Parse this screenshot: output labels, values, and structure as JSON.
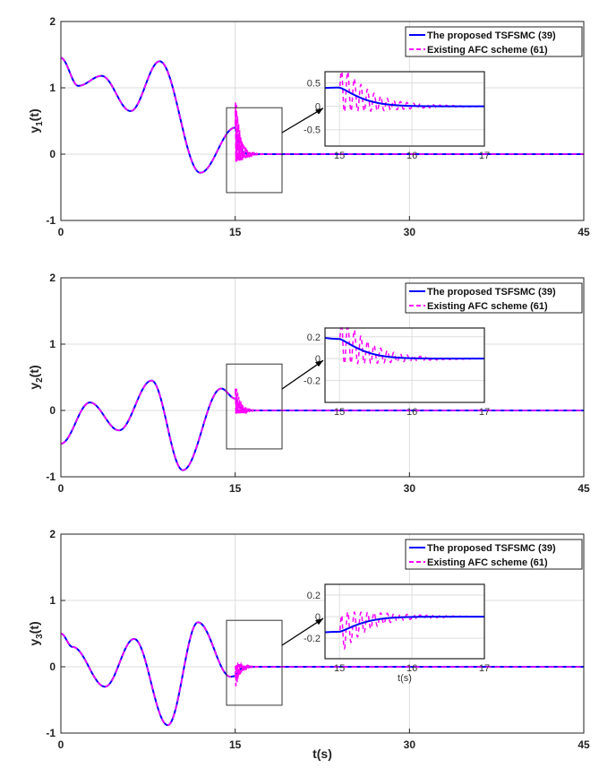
{
  "chart_data": {
    "type": "line",
    "xlabel": "t(s)",
    "xlim": [
      0,
      45
    ],
    "xticks": [
      "0",
      "15",
      "30",
      "45"
    ],
    "ylim": [
      -1,
      2
    ],
    "yticks": [
      "-1",
      "0",
      "1",
      "2"
    ],
    "grid": true,
    "legend": {
      "placement": "top-right",
      "entries": [
        "The proposed TSFSMC (39)",
        "Existing AFC scheme (61)"
      ]
    },
    "colors": {
      "proposed": "#0000ff",
      "existing": "#ff00ff"
    },
    "panels": [
      {
        "ylabel": "y",
        "sub": "1",
        "ylabel_suffix": "(t)",
        "keypoints_t": [
          0,
          1.5,
          3.5,
          6,
          8.5,
          12,
          15
        ],
        "keypoints_y": [
          1.45,
          1.03,
          1.18,
          0.65,
          1.4,
          -0.28,
          0.4
        ],
        "existing_osc_amplitude": 0.55,
        "inset": {
          "xlim": [
            14.8,
            17
          ],
          "ylim": [
            -0.85,
            0.74
          ],
          "xticks": [
            "15",
            "16",
            "17"
          ],
          "yticks": [
            "0.5",
            "0",
            "-0.5"
          ],
          "ytick_values": [
            0.5,
            0,
            -0.5
          ],
          "xlabel": ""
        }
      },
      {
        "ylabel": "y",
        "sub": "2",
        "ylabel_suffix": "(t)",
        "keypoints_t": [
          0,
          2.5,
          5,
          7.8,
          10.5,
          13.8,
          15
        ],
        "keypoints_y": [
          -0.5,
          0.12,
          -0.3,
          0.45,
          -0.9,
          0.33,
          0.18
        ],
        "existing_osc_amplitude": 0.24,
        "inset": {
          "xlim": [
            14.8,
            17
          ],
          "ylim": [
            -0.4,
            0.28
          ],
          "xticks": [
            "15",
            "16",
            "17"
          ],
          "yticks": [
            "0.2",
            "0",
            "-0.2"
          ],
          "ytick_values": [
            0.2,
            0,
            -0.2
          ],
          "xlabel": ""
        }
      },
      {
        "ylabel": "y",
        "sub": "3",
        "ylabel_suffix": "(t)",
        "keypoints_t": [
          0,
          1,
          3.8,
          6.3,
          9.2,
          11.8,
          14.6,
          15
        ],
        "keypoints_y": [
          0.5,
          0.3,
          -0.3,
          0.42,
          -0.88,
          0.67,
          -0.15,
          -0.14
        ],
        "existing_osc_amplitude": 0.2,
        "inset": {
          "xlim": [
            14.8,
            17
          ],
          "ylim": [
            -0.39,
            0.3
          ],
          "xticks": [
            "15",
            "16",
            "17"
          ],
          "yticks": [
            "0.2",
            "0",
            "-0.2"
          ],
          "ytick_values": [
            0.2,
            0,
            -0.2
          ],
          "xlabel": "t(s)"
        }
      }
    ]
  }
}
